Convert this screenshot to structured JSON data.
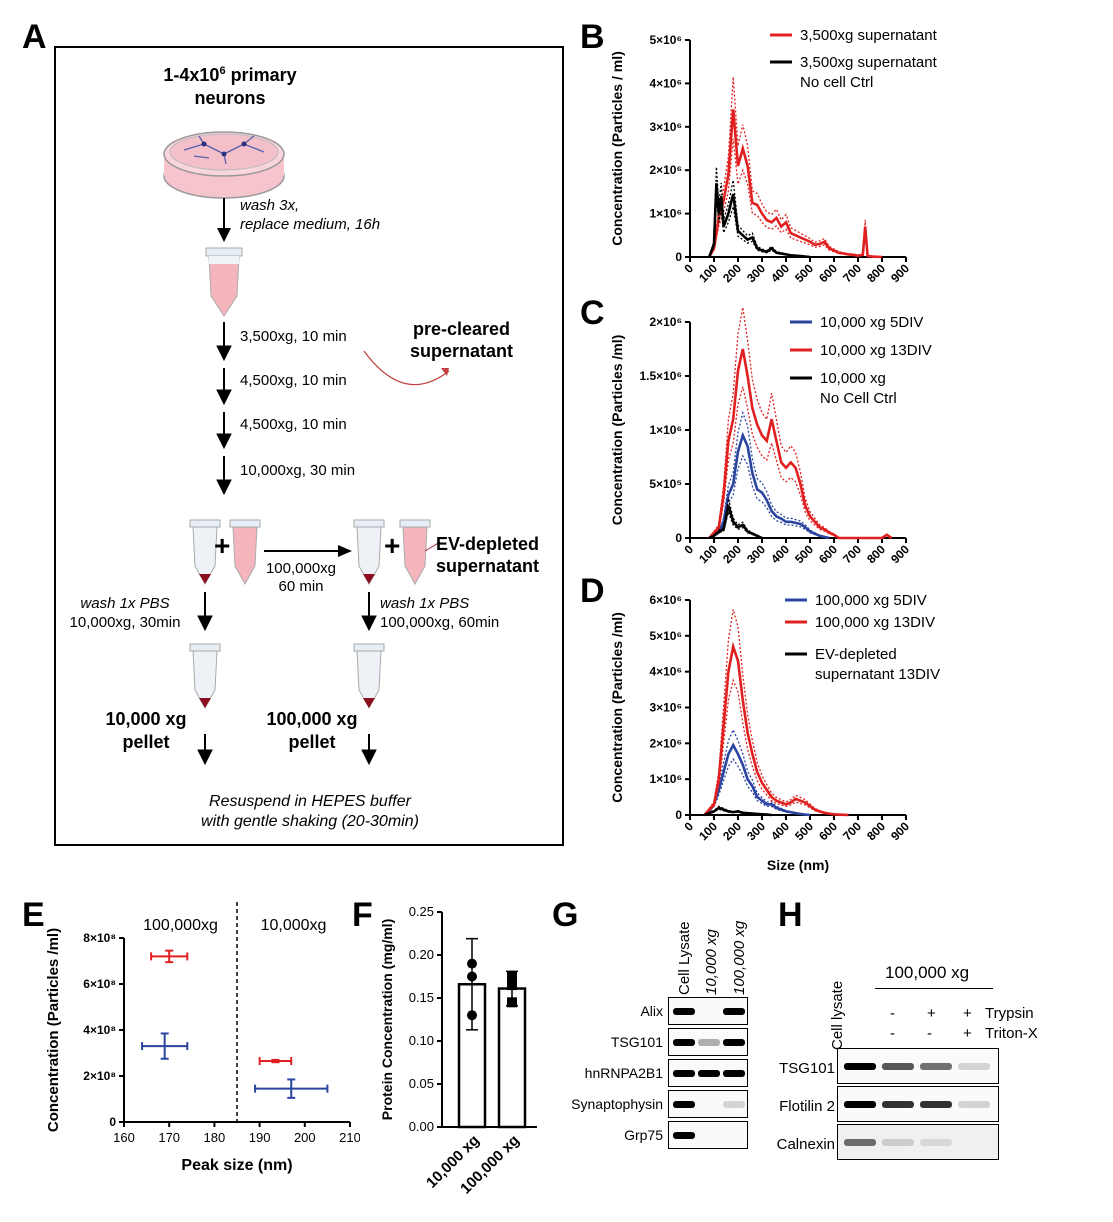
{
  "panelA": {
    "label": "A",
    "start_cells_prefix": "1-4x10",
    "start_cells_exp": "6",
    "start_cells_suffix": " primary",
    "start_cells_line2": "neurons",
    "wash_line1": "wash 3x,",
    "wash_line2": "replace medium, 16h",
    "spin1": "3,500xg,  10 min",
    "spin2": "4,500xg,  10 min",
    "spin3": "4,500xg,  10 min",
    "spin4": "10,000xg,  30 min",
    "precleared_line1": "pre-cleared",
    "precleared_line2": "supernatant",
    "ultra_line1": "100,000xg",
    "ultra_line2": "60 min",
    "evdepleted_line1": "EV-depleted",
    "evdepleted_line2": "supernatant",
    "wash_left_line1": "wash 1x PBS",
    "wash_left_line2": "10,000xg,  30min",
    "wash_right_line1": "wash 1x PBS",
    "wash_right_line2": "100,000xg,  60min",
    "pellet_left_line1": "10,000 xg",
    "pellet_left_line2": "pellet",
    "pellet_right_line1": "100,000 xg",
    "pellet_right_line2": "pellet",
    "resuspend_line1": "Resuspend in HEPES buffer",
    "resuspend_line2": "with gentle shaking (20-30min)",
    "plus": "+"
  },
  "panel_labels": {
    "B": "B",
    "C": "C",
    "D": "D",
    "E": "E",
    "F": "F",
    "G": "G",
    "H": "H"
  },
  "colors": {
    "red": "#e02020",
    "blue": "#2a44a0",
    "black": "#000000"
  },
  "chart_data": [
    {
      "id": "B",
      "type": "line",
      "ylabel": "Concentration (Particles / ml)",
      "xlabel": "",
      "xlim": [
        0,
        900
      ],
      "ylim": [
        0,
        5000000
      ],
      "x_ticks": [
        "0",
        "100",
        "200",
        "300",
        "400",
        "500",
        "600",
        "700",
        "800",
        "900"
      ],
      "y_ticks": [
        "0",
        "1×10⁶",
        "2×10⁶",
        "3×10⁶",
        "4×10⁶",
        "5×10⁶"
      ],
      "series": [
        {
          "name": "3,500xg supernatant",
          "color": "red",
          "x": [
            80,
            100,
            120,
            140,
            160,
            180,
            200,
            220,
            240,
            260,
            280,
            300,
            320,
            340,
            360,
            380,
            400,
            420,
            440,
            460,
            480,
            500,
            520,
            540,
            560,
            580,
            600,
            620,
            640,
            660,
            680,
            700,
            720,
            730,
            740,
            760,
            800
          ],
          "y": [
            0,
            200000,
            900000,
            1300000,
            1900000,
            3400000,
            2100000,
            2500000,
            2100000,
            1250000,
            1200000,
            1000000,
            850000,
            800000,
            900000,
            700000,
            800000,
            550000,
            500000,
            450000,
            400000,
            350000,
            280000,
            300000,
            350000,
            200000,
            150000,
            100000,
            80000,
            60000,
            50000,
            30000,
            50000,
            700000,
            20000,
            10000,
            0
          ]
        },
        {
          "name": "3,500xg supernatant No cell Ctrl",
          "color": "black",
          "x": [
            80,
            100,
            110,
            120,
            130,
            140,
            160,
            180,
            200,
            220,
            240,
            260,
            280,
            300,
            320,
            340,
            360,
            380,
            400,
            420,
            440,
            460,
            480,
            500
          ],
          "y": [
            0,
            300000,
            1700000,
            1000000,
            1400000,
            700000,
            1000000,
            1450000,
            600000,
            500000,
            400000,
            450000,
            200000,
            150000,
            120000,
            200000,
            100000,
            80000,
            60000,
            40000,
            30000,
            20000,
            10000,
            0
          ]
        }
      ]
    },
    {
      "id": "C",
      "type": "line",
      "ylabel": "Concentration (Particles /ml)",
      "xlabel": "",
      "xlim": [
        0,
        900
      ],
      "ylim": [
        0,
        2000000
      ],
      "x_ticks": [
        "0",
        "100",
        "200",
        "300",
        "400",
        "500",
        "600",
        "700",
        "800",
        "900"
      ],
      "y_ticks": [
        "0",
        "5×10⁵",
        "1×10⁶",
        "1.5×10⁶",
        "2×10⁶"
      ],
      "series": [
        {
          "name": "10,000 xg 5DIV",
          "color": "blue",
          "x": [
            80,
            120,
            140,
            160,
            180,
            200,
            220,
            240,
            260,
            280,
            300,
            320,
            340,
            360,
            380,
            400,
            420,
            440,
            460,
            480,
            500,
            520,
            540,
            560,
            580
          ],
          "y": [
            0,
            50000,
            150000,
            400000,
            500000,
            800000,
            950000,
            850000,
            600000,
            450000,
            420000,
            350000,
            250000,
            200000,
            180000,
            150000,
            150000,
            140000,
            130000,
            100000,
            60000,
            40000,
            20000,
            10000,
            0
          ]
        },
        {
          "name": "10,000 xg 13DIV",
          "color": "red",
          "x": [
            80,
            120,
            140,
            160,
            180,
            200,
            220,
            240,
            260,
            280,
            300,
            320,
            340,
            360,
            380,
            400,
            420,
            440,
            460,
            480,
            500,
            520,
            540,
            560,
            580,
            600,
            620,
            800,
            820,
            840
          ],
          "y": [
            0,
            100000,
            400000,
            900000,
            1100000,
            1550000,
            1750000,
            1500000,
            1200000,
            1050000,
            950000,
            900000,
            1100000,
            900000,
            700000,
            650000,
            700000,
            650000,
            500000,
            300000,
            200000,
            150000,
            100000,
            80000,
            50000,
            30000,
            0,
            0,
            30000,
            0
          ]
        },
        {
          "name": "10,000 xg No Cell Ctrl",
          "color": "black",
          "x": [
            80,
            100,
            120,
            140,
            160,
            180,
            200,
            220,
            240,
            260,
            280,
            300
          ],
          "y": [
            0,
            20000,
            60000,
            80000,
            300000,
            150000,
            100000,
            120000,
            60000,
            40000,
            20000,
            0
          ]
        }
      ]
    },
    {
      "id": "D",
      "type": "line",
      "ylabel": "Concentration (Particles /ml)",
      "xlabel": "Size (nm)",
      "xlim": [
        0,
        900
      ],
      "ylim": [
        0,
        6000000
      ],
      "x_ticks": [
        "0",
        "100",
        "200",
        "300",
        "400",
        "500",
        "600",
        "700",
        "800",
        "900"
      ],
      "y_ticks": [
        "0",
        "1×10⁶",
        "2×10⁶",
        "3×10⁶",
        "4×10⁶",
        "5×10⁶",
        "6×10⁶"
      ],
      "series": [
        {
          "name": "100,000 xg 5DIV",
          "color": "blue",
          "x": [
            60,
            80,
            100,
            120,
            140,
            160,
            180,
            200,
            220,
            240,
            260,
            280,
            300,
            320,
            340,
            360,
            380,
            400,
            420,
            440,
            460,
            480,
            500
          ],
          "y": [
            0,
            100000,
            300000,
            700000,
            1200000,
            1700000,
            1950000,
            1700000,
            1400000,
            1000000,
            800000,
            500000,
            400000,
            300000,
            300000,
            200000,
            150000,
            100000,
            80000,
            50000,
            30000,
            10000,
            0
          ]
        },
        {
          "name": "100,000 xg 13DIV",
          "color": "red",
          "x": [
            60,
            80,
            100,
            120,
            140,
            160,
            180,
            200,
            220,
            240,
            260,
            280,
            300,
            320,
            340,
            360,
            380,
            400,
            420,
            440,
            460,
            480,
            500,
            520,
            540,
            560,
            580,
            600,
            620,
            640,
            660
          ],
          "y": [
            0,
            150000,
            300000,
            1000000,
            2500000,
            4000000,
            4700000,
            4300000,
            3200000,
            2300000,
            1700000,
            1200000,
            900000,
            700000,
            500000,
            400000,
            350000,
            300000,
            350000,
            450000,
            400000,
            350000,
            250000,
            150000,
            100000,
            60000,
            40000,
            20000,
            10000,
            5000,
            0
          ]
        },
        {
          "name": "EV-depleted supernatant 13DIV",
          "color": "black",
          "x": [
            60,
            80,
            100,
            120,
            140,
            160,
            180,
            200,
            220,
            240,
            260,
            280,
            300,
            320,
            340
          ],
          "y": [
            0,
            50000,
            100000,
            200000,
            150000,
            100000,
            80000,
            100000,
            60000,
            50000,
            40000,
            30000,
            20000,
            10000,
            0
          ]
        }
      ]
    },
    {
      "id": "E",
      "type": "scatter",
      "ylabel": "Concentration (Particles /ml)",
      "xlabel": "Peak size (nm)",
      "xlim": [
        160,
        210
      ],
      "ylim": [
        0,
        800000000
      ],
      "x_ticks": [
        "160",
        "170",
        "180",
        "190",
        "200",
        "210"
      ],
      "y_ticks": [
        "0",
        "2×10⁸",
        "4×10⁸",
        "6×10⁸",
        "8×10⁸"
      ],
      "divider_x": 185,
      "group_labels": [
        "100,000xg",
        "10,000xg"
      ],
      "points": [
        {
          "color": "red",
          "x": 170,
          "y": 720000000,
          "xerr": 4,
          "yerr": 25000000
        },
        {
          "color": "blue",
          "x": 169,
          "y": 330000000,
          "xerr": 5,
          "yerr": 55000000
        },
        {
          "color": "red",
          "x": 193.5,
          "y": 265000000,
          "xerr": 3.5,
          "yerr": 5000000
        },
        {
          "color": "blue",
          "x": 197,
          "y": 145000000,
          "xerr": 8,
          "yerr": 40000000
        }
      ]
    },
    {
      "id": "F",
      "type": "bar",
      "ylabel": "Protein Concentration (mg/ml)",
      "xlabel": "",
      "ylim": [
        0,
        0.25
      ],
      "y_ticks": [
        "0.00",
        "0.05",
        "0.10",
        "0.15",
        "0.20",
        "0.25"
      ],
      "categories": [
        "10,000 xg",
        "100,000 xg"
      ],
      "values": [
        0.166,
        0.161
      ],
      "errors": [
        0.053,
        0.02
      ],
      "points": [
        [
          0.19,
          0.175,
          0.13
        ],
        [
          0.175,
          0.165,
          0.145
        ]
      ]
    }
  ],
  "panelG": {
    "label": "G",
    "lanes": [
      "Cell Lysate",
      "10,000 xg",
      "100,000 xg"
    ],
    "rows": [
      "Alix",
      "TSG101",
      "hnRNPA2B1",
      "Synaptophysin",
      "Grp75"
    ]
  },
  "panelH": {
    "label": "H",
    "lane1": "Cell lysate",
    "group_label": "100,000 xg",
    "trypsin_label": "Trypsin",
    "tritonx_label": "Triton-X",
    "trypsin_signs": [
      "-",
      "+",
      "+"
    ],
    "tritonx_signs": [
      "-",
      "-",
      "+"
    ],
    "rows": [
      "TSG101",
      "Flotilin 2",
      "Calnexin"
    ]
  }
}
